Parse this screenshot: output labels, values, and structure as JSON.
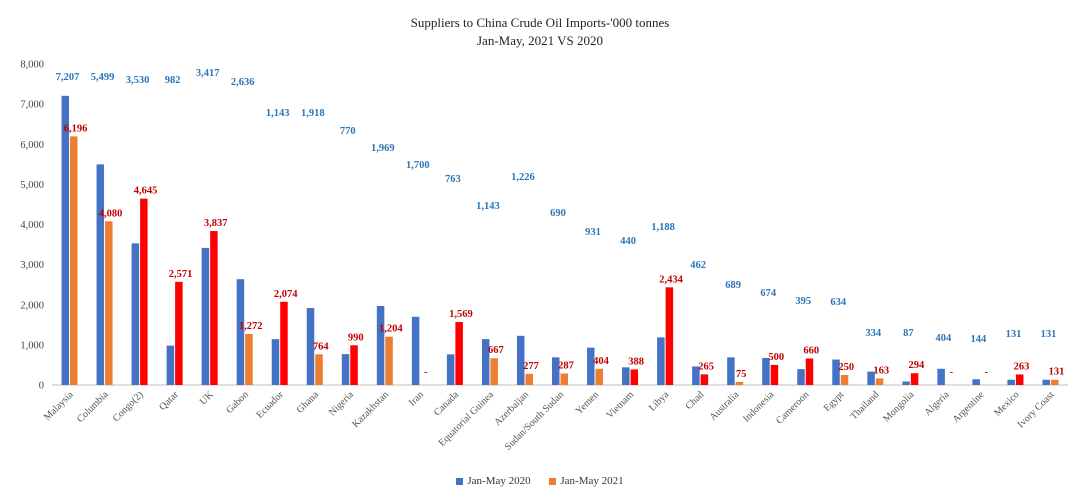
{
  "chart_data": {
    "type": "bar",
    "title": "Suppliers to China Crude Oil Imports-'000 tonnes",
    "subtitle": "Jan-May, 2021 VS 2020",
    "ylim": [
      0,
      8000
    ],
    "yticks": [
      "0",
      "1,000",
      "2,000",
      "3,000",
      "4,000",
      "5,000",
      "6,000",
      "7,000",
      "8,000"
    ],
    "grid": false,
    "legend_position": "bottom",
    "categories": [
      "Malaysia",
      "Columbia",
      "Congo(2)",
      "Qatar",
      "UK",
      "Gabon",
      "Ecuador",
      "Ghana",
      "Nigeria",
      "Kazakhstan",
      "Iran",
      "Canada",
      "Equatorial Guinea",
      "Azerbaijan",
      "Sudan/South Sudan",
      "Yemen",
      "Vietnam",
      "Libya",
      "Chad",
      "Australia",
      "Indonesia",
      "Cameroon",
      "Egypt",
      "Thailand",
      "Mongolia",
      "Algeria",
      "Argentine",
      "Mexico",
      "Ivory Coast"
    ],
    "series": [
      {
        "name": "Jan-May 2020",
        "values": [
          7207,
          5499,
          3530,
          982,
          3417,
          2636,
          1143,
          1918,
          770,
          1969,
          1700,
          763,
          1143,
          1226,
          690,
          931,
          440,
          1188,
          462,
          689,
          674,
          395,
          634,
          334,
          87,
          404,
          144,
          131,
          131
        ],
        "labels": [
          "7,207",
          "5,499",
          "3,530",
          "982",
          "3,417",
          "2,636",
          "1,143",
          "1,918",
          "770",
          "1,969",
          "1,700",
          "763",
          "1,143",
          "1,226",
          "690",
          "931",
          "440",
          "1,188",
          "462",
          "689",
          "674",
          "395",
          "634",
          "334",
          "87",
          "404",
          "144",
          "131",
          "131"
        ],
        "bar_color": "#4472C4",
        "label_color": "#2E75B6"
      },
      {
        "name": "Jan-May 2021",
        "values": [
          6196,
          4080,
          4645,
          2571,
          3837,
          1272,
          2074,
          764,
          990,
          1204,
          0,
          1569,
          667,
          277,
          287,
          404,
          388,
          2434,
          265,
          75,
          500,
          660,
          250,
          163,
          294,
          0,
          0,
          263,
          131
        ],
        "labels": [
          "6,196",
          "4,080",
          "4,645",
          "2,571",
          "3,837",
          "1,272",
          "2,074",
          "764",
          "990",
          "1,204",
          "-",
          "1,569",
          "667",
          "277",
          "287",
          "404",
          "388",
          "2,434",
          "265",
          "75",
          "500",
          "660",
          "250",
          "163",
          "294",
          "-",
          "-",
          "263",
          "131"
        ],
        "bar_colors": [
          "#ED7D31",
          "#ED7D31",
          "#FF0000",
          "#FF0000",
          "#FF0000",
          "#ED7D31",
          "#FF0000",
          "#ED7D31",
          "#FF0000",
          "#ED7D31",
          "#ED7D31",
          "#FF0000",
          "#ED7D31",
          "#ED7D31",
          "#ED7D31",
          "#ED7D31",
          "#FF0000",
          "#FF0000",
          "#FF0000",
          "#ED7D31",
          "#FF0000",
          "#FF0000",
          "#ED7D31",
          "#ED7D31",
          "#FF0000",
          "#ED7D31",
          "#ED7D31",
          "#FF0000",
          "#ED7D31"
        ],
        "bar_color": "#ED7D31",
        "label_color": "#C00000"
      }
    ]
  }
}
